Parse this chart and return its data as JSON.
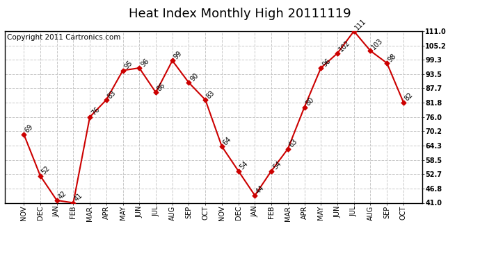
{
  "title": "Heat Index Monthly High 20111119",
  "copyright": "Copyright 2011 Cartronics.com",
  "months": [
    "NOV",
    "DEC",
    "JAN",
    "FEB",
    "MAR",
    "APR",
    "MAY",
    "JUN",
    "JUL",
    "AUG",
    "SEP",
    "OCT",
    "NOV",
    "DEC",
    "JAN",
    "FEB",
    "MAR",
    "APR",
    "MAY",
    "JUN",
    "JUL",
    "AUG",
    "SEP",
    "OCT"
  ],
  "values": [
    69,
    52,
    42,
    41,
    76,
    83,
    95,
    96,
    86,
    99,
    90,
    83,
    64,
    54,
    44,
    54,
    63,
    80,
    96,
    102,
    111,
    103,
    98,
    82
  ],
  "line_color": "#cc0000",
  "marker": "D",
  "marker_size": 3.5,
  "ylim": [
    41.0,
    111.0
  ],
  "yticks": [
    41.0,
    46.8,
    52.7,
    58.5,
    64.3,
    70.2,
    76.0,
    81.8,
    87.7,
    93.5,
    99.3,
    105.2,
    111.0
  ],
  "ytick_labels": [
    "41.0",
    "46.8",
    "52.7",
    "58.5",
    "64.3",
    "70.2",
    "76.0",
    "81.8",
    "87.7",
    "93.5",
    "99.3",
    "105.2",
    "111.0"
  ],
  "grid_color": "#c8c8c8",
  "bg_color": "#ffffff",
  "title_fontsize": 13,
  "copyright_fontsize": 7.5,
  "label_fontsize": 7,
  "tick_fontsize": 7
}
